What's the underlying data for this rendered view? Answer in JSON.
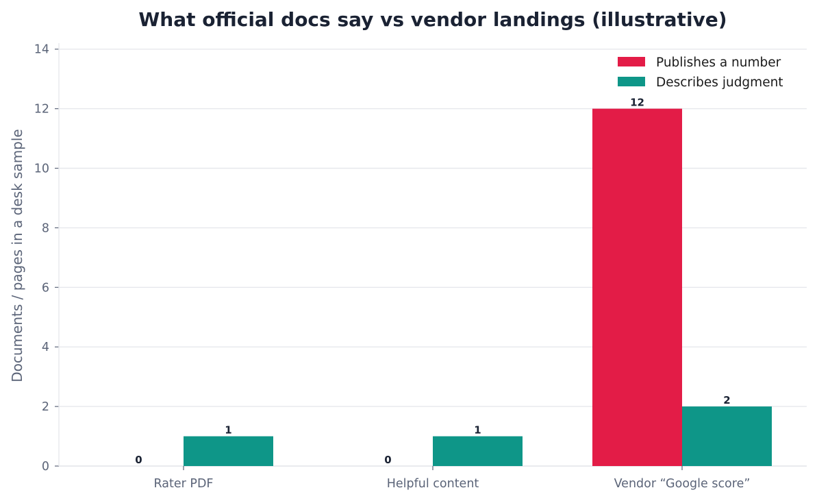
{
  "chart_data": {
    "type": "bar",
    "title": "What official docs say vs vendor landings (illustrative)",
    "xlabel": "",
    "ylabel": "Documents / pages in a desk sample",
    "categories": [
      "Rater PDF",
      "Helpful content",
      "Vendor “Google score”"
    ],
    "series": [
      {
        "name": "Publishes a number",
        "color": "#e31c47",
        "values": [
          0,
          0,
          12
        ]
      },
      {
        "name": "Describes judgment",
        "color": "#0e9688",
        "values": [
          1,
          1,
          2
        ]
      }
    ],
    "ylim": [
      0,
      14.2
    ],
    "yticks": [
      0,
      2,
      4,
      6,
      8,
      10,
      12,
      14
    ],
    "grid": true,
    "legend_position": "top-right",
    "data_labels": true
  }
}
